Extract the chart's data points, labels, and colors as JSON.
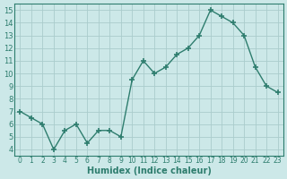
{
  "x": [
    0,
    1,
    2,
    3,
    4,
    5,
    6,
    7,
    8,
    9,
    10,
    11,
    12,
    13,
    14,
    15,
    16,
    17,
    18,
    19,
    20,
    21,
    22,
    23
  ],
  "y": [
    7.0,
    6.5,
    6.0,
    4.0,
    5.5,
    6.0,
    4.5,
    5.5,
    5.5,
    5.0,
    9.5,
    11.0,
    10.0,
    10.5,
    11.5,
    12.0,
    13.0,
    15.0,
    14.5,
    14.0,
    13.0,
    10.5,
    9.0,
    8.5
  ],
  "xlabel": "Humidex (Indice chaleur)",
  "line_color": "#2e7d6e",
  "marker": "+",
  "bg_color": "#cce8e8",
  "grid_color": "#aacccc",
  "ylim": [
    3.5,
    15.5
  ],
  "xlim": [
    -0.5,
    23.5
  ],
  "yticks": [
    4,
    5,
    6,
    7,
    8,
    9,
    10,
    11,
    12,
    13,
    14,
    15
  ],
  "xticks": [
    0,
    1,
    2,
    3,
    4,
    5,
    6,
    7,
    8,
    9,
    10,
    11,
    12,
    13,
    14,
    15,
    16,
    17,
    18,
    19,
    20,
    21,
    22,
    23
  ],
  "xlabel_fontsize": 7,
  "ytick_fontsize": 6,
  "xtick_fontsize": 5.5
}
